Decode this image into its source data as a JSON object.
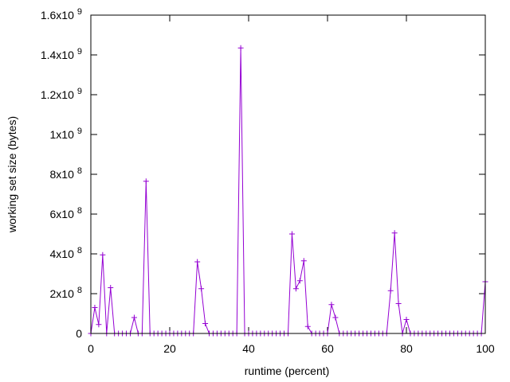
{
  "chart_data": {
    "type": "line",
    "xlabel": "runtime (percent)",
    "ylabel": "working set size (bytes)",
    "xlim": [
      0,
      100
    ],
    "ylim": [
      0,
      1600000000
    ],
    "grid": false,
    "series_color": "#9400d3",
    "x_ticks": [
      {
        "value": 0,
        "label": "0"
      },
      {
        "value": 20,
        "label": "20"
      },
      {
        "value": 40,
        "label": "40"
      },
      {
        "value": 60,
        "label": "60"
      },
      {
        "value": 80,
        "label": "80"
      },
      {
        "value": 100,
        "label": "100"
      }
    ],
    "y_ticks": [
      {
        "value": 0,
        "mant": "0",
        "exp": ""
      },
      {
        "value": 200000000,
        "mant": "2x10",
        "exp": "8"
      },
      {
        "value": 400000000,
        "mant": "4x10",
        "exp": "8"
      },
      {
        "value": 600000000,
        "mant": "6x10",
        "exp": "8"
      },
      {
        "value": 800000000,
        "mant": "8x10",
        "exp": "8"
      },
      {
        "value": 1000000000,
        "mant": "1x10",
        "exp": "9"
      },
      {
        "value": 1200000000,
        "mant": "1.2x10",
        "exp": "9"
      },
      {
        "value": 1400000000,
        "mant": "1.4x10",
        "exp": "9"
      },
      {
        "value": 1600000000,
        "mant": "1.6x10",
        "exp": "9"
      }
    ],
    "series": [
      {
        "x": [
          0,
          1,
          2,
          3,
          4,
          5,
          6,
          7,
          8,
          9,
          10,
          11,
          12,
          13,
          14,
          15,
          16,
          17,
          18,
          19,
          20,
          21,
          22,
          23,
          24,
          25,
          26,
          27,
          28,
          29,
          30,
          31,
          32,
          33,
          34,
          35,
          36,
          37,
          38,
          39,
          40,
          41,
          42,
          43,
          44,
          45,
          46,
          47,
          48,
          49,
          50,
          51,
          52,
          53,
          54,
          55,
          56,
          57,
          58,
          59,
          60,
          61,
          62,
          63,
          64,
          65,
          66,
          67,
          68,
          69,
          70,
          71,
          72,
          73,
          74,
          75,
          76,
          77,
          78,
          79,
          80,
          81,
          82,
          83,
          84,
          85,
          86,
          87,
          88,
          89,
          90,
          91,
          92,
          93,
          94,
          95,
          96,
          97,
          98,
          99,
          100
        ],
        "y": [
          0,
          130000000,
          45000000,
          395000000,
          0,
          230000000,
          0,
          0,
          0,
          0,
          0,
          80000000,
          0,
          0,
          765000000,
          0,
          0,
          0,
          0,
          0,
          0,
          0,
          0,
          0,
          0,
          0,
          0,
          360000000,
          225000000,
          50000000,
          0,
          0,
          0,
          0,
          0,
          0,
          0,
          0,
          1435000000,
          0,
          0,
          0,
          0,
          0,
          0,
          0,
          0,
          0,
          0,
          0,
          0,
          500000000,
          225000000,
          265000000,
          365000000,
          35000000,
          0,
          0,
          0,
          0,
          0,
          145000000,
          80000000,
          0,
          0,
          0,
          0,
          0,
          0,
          0,
          0,
          0,
          0,
          0,
          0,
          0,
          215000000,
          505000000,
          150000000,
          0,
          70000000,
          0,
          0,
          0,
          0,
          0,
          0,
          0,
          0,
          0,
          0,
          0,
          0,
          0,
          0,
          0,
          0,
          0,
          0,
          0,
          260000000
        ]
      }
    ]
  }
}
